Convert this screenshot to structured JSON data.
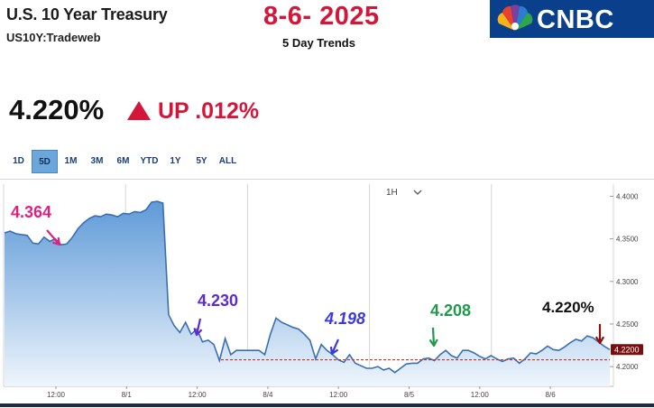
{
  "header": {
    "title": "U.S. 10 Year Treasury",
    "symbol": "US10Y:Tradeweb",
    "date_heading": "8-6- 2025",
    "subtitle": "5 Day Trends",
    "logo_text": "CNBC",
    "logo_icon": "peacock-icon",
    "brand_color": "#0a3f8c",
    "accent_color": "#d4163a"
  },
  "quote": {
    "price": "4.220%",
    "direction_icon": "up-triangle-icon",
    "change": "UP .012%"
  },
  "range_tabs": [
    {
      "label": "1D",
      "active": false
    },
    {
      "label": "5D",
      "active": true
    },
    {
      "label": "1M",
      "active": false
    },
    {
      "label": "3M",
      "active": false
    },
    {
      "label": "6M",
      "active": false
    },
    {
      "label": "YTD",
      "active": false
    },
    {
      "label": "1Y",
      "active": false
    },
    {
      "label": "5Y",
      "active": false
    },
    {
      "label": "ALL",
      "active": false
    }
  ],
  "interval": {
    "label": "1H",
    "icon": "chevron-down-icon"
  },
  "chart_data": {
    "type": "area",
    "title": "",
    "xlabel": "",
    "ylabel": "",
    "ylim": [
      4.18,
      4.41
    ],
    "y_ticks": [
      "4.2000",
      "4.2500",
      "4.3000",
      "4.3500",
      "4.4000"
    ],
    "x_ticks": [
      "12:00",
      "8/1",
      "12:00",
      "8/4",
      "12:00",
      "8/5",
      "12:00",
      "8/6"
    ],
    "grid": true,
    "last_value_label": "4.2200",
    "reference_level": 4.208,
    "colors": {
      "line": "#3a6fb0",
      "fill_top": "#5f9ad8",
      "fill_bottom": "#eef5fc",
      "last_value_box": "#7a0e0e",
      "reference_line": "#c0392b"
    },
    "series": [
      {
        "values": [
          4.357,
          4.359,
          4.356,
          4.355,
          4.354,
          4.345,
          4.344,
          4.352,
          4.347,
          4.35,
          4.343,
          4.344,
          4.352,
          4.362,
          4.369,
          4.374,
          4.377,
          4.376,
          4.379,
          4.378,
          4.376,
          4.38,
          4.379,
          4.382,
          4.381,
          4.384,
          4.393,
          4.394,
          4.392,
          4.261,
          4.248,
          4.24,
          4.252,
          4.238,
          4.244,
          4.229,
          4.231,
          4.226,
          4.207,
          4.233,
          4.214,
          4.219,
          4.219,
          4.219,
          4.219,
          4.219,
          4.214,
          4.238,
          4.257,
          4.252,
          4.249,
          4.246,
          4.244,
          4.238,
          4.231,
          4.209,
          4.226,
          4.219,
          4.214,
          4.208,
          4.205,
          4.214,
          4.204,
          4.201,
          4.198,
          4.198,
          4.2,
          4.196,
          4.198,
          4.193,
          4.198,
          4.203,
          4.204,
          4.204,
          4.209,
          4.21,
          4.207,
          4.214,
          4.219,
          4.213,
          4.21,
          4.219,
          4.219,
          4.216,
          4.212,
          4.209,
          4.213,
          4.209,
          4.206,
          4.209,
          4.21,
          4.204,
          4.209,
          4.216,
          4.215,
          4.219,
          4.224,
          4.22,
          4.219,
          4.223,
          4.228,
          4.232,
          4.23,
          4.236,
          4.234,
          4.229,
          4.224,
          4.22
        ]
      }
    ],
    "annotations": [
      {
        "text": "4.364",
        "color": "#e0207f"
      },
      {
        "text": "4.230",
        "color": "#5b2bd6"
      },
      {
        "text": "4.198",
        "color": "#3a3ae0"
      },
      {
        "text": "4.208",
        "color": "#1f9a4a"
      },
      {
        "text": "4.220%",
        "color": "#111111"
      }
    ]
  }
}
